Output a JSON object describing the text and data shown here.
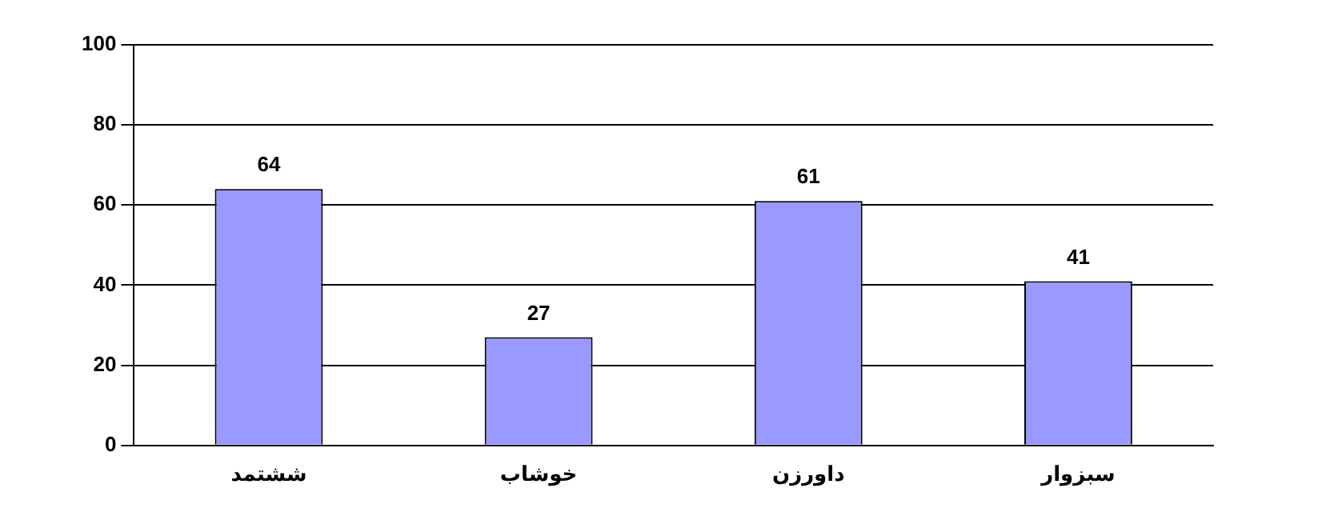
{
  "chart_data": {
    "type": "bar",
    "categories": [
      "ششتمد",
      "خوشاب",
      "داورزن",
      "سبزوار"
    ],
    "values": [
      64,
      27,
      61,
      41
    ],
    "color": "#9999ff",
    "ylim": [
      0,
      100
    ],
    "yticks": [
      0,
      20,
      40,
      60,
      80,
      100
    ],
    "grid": "y",
    "data_labels": true
  }
}
